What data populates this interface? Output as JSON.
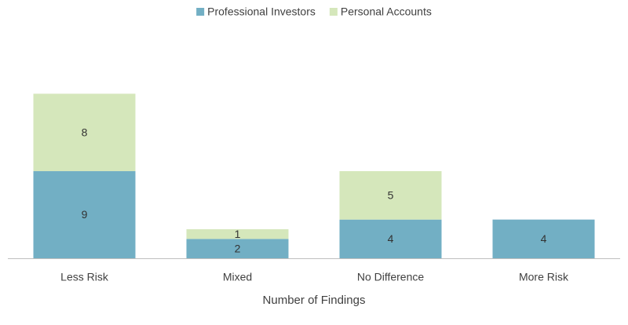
{
  "chart_data": {
    "type": "stacked-bar",
    "x_label": "Number of Findings",
    "categories": [
      "Less Risk",
      "Mixed",
      "No Difference",
      "More Risk"
    ],
    "series": [
      {
        "name": "Professional Investors",
        "color": "#72afc4",
        "values": [
          9,
          2,
          4,
          4
        ]
      },
      {
        "name": "Personal Accounts",
        "color": "#d5e7bb",
        "values": [
          8,
          1,
          5,
          null
        ]
      }
    ],
    "legend": "top"
  }
}
